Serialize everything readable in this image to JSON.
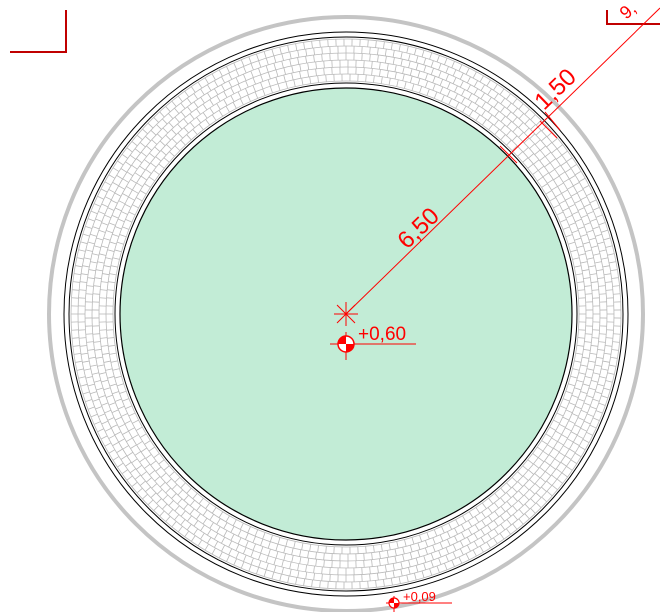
{
  "drawing": {
    "dimensions": {
      "inner_radius": "6,50",
      "ring_width": "1,50"
    },
    "levels": {
      "center": "+0,60",
      "edge": "+0,09"
    },
    "corner_label_partial": "9,"
  },
  "colors": {
    "annotation": "#ff0000",
    "annotation_dark": "#c00000",
    "pool_fill": "#c2ecd6",
    "outline": "#000000",
    "outer_ring": "#c4c4c4",
    "paving": "#b9b9b9"
  }
}
